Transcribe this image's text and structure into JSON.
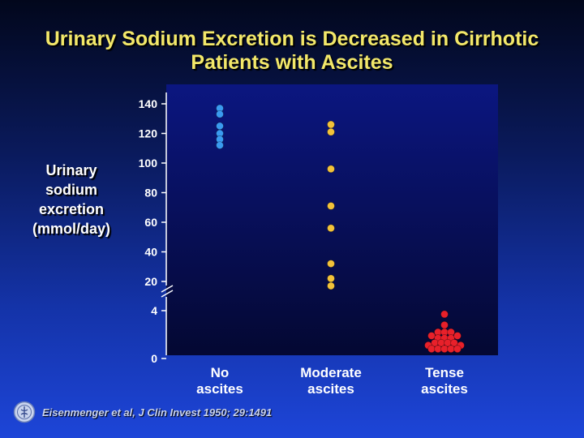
{
  "slide": {
    "title_line1": "Urinary Sodium Excretion is Decreased in Cirrhotic",
    "title_line2": "Patients with Ascites",
    "ylabel_line1": "Urinary",
    "ylabel_line2": "sodium",
    "ylabel_line3": "excretion",
    "ylabel_line4": "(mmol/day)",
    "citation": "Eisenmenger et al, J Clin Invest 1950; 29:1491"
  },
  "colors": {
    "plot_background": "#0b1680",
    "no_ascites": "#3a9af0",
    "moderate_ascites": "#f2c23a",
    "tense_ascites": "#e8202a"
  },
  "chart_data": {
    "type": "scatter",
    "title": "Urinary Sodium Excretion is Decreased in Cirrhotic Patients with Ascites",
    "ylabel": "Urinary sodium excretion (mmol/day)",
    "xlabel": "",
    "y_axis_break": "between 4 and 20",
    "yticks": [
      0,
      4,
      20,
      40,
      60,
      80,
      100,
      120,
      140
    ],
    "categories": [
      "No\nascites",
      "Moderate\nascites",
      "Tense\nascites"
    ],
    "series": [
      {
        "category": 0,
        "color": "#3a9af0",
        "points": [
          {
            "x": 0,
            "y": 137
          },
          {
            "x": 0,
            "y": 133
          },
          {
            "x": 0,
            "y": 125
          },
          {
            "x": 0,
            "y": 120
          },
          {
            "x": 0,
            "y": 116
          },
          {
            "x": 0,
            "y": 112
          }
        ]
      },
      {
        "category": 1,
        "color": "#f2c23a",
        "points": [
          {
            "x": 0,
            "y": 126
          },
          {
            "x": 0,
            "y": 121
          },
          {
            "x": 0,
            "y": 96
          },
          {
            "x": 0,
            "y": 71
          },
          {
            "x": 0,
            "y": 56
          },
          {
            "x": 0,
            "y": 32
          },
          {
            "x": 0,
            "y": 22
          },
          {
            "x": 0,
            "y": 17
          }
        ]
      },
      {
        "category": 2,
        "color": "#e8202a",
        "points": [
          {
            "x": 0,
            "y": 3.7
          },
          {
            "x": 0,
            "y": 2.8
          },
          {
            "x": -0.1,
            "y": 2.2
          },
          {
            "x": 0,
            "y": 2.2
          },
          {
            "x": 0.1,
            "y": 2.2
          },
          {
            "x": -0.2,
            "y": 1.9
          },
          {
            "x": -0.1,
            "y": 1.7
          },
          {
            "x": 0,
            "y": 1.7
          },
          {
            "x": 0.1,
            "y": 1.7
          },
          {
            "x": 0.2,
            "y": 1.9
          },
          {
            "x": -0.15,
            "y": 1.3
          },
          {
            "x": -0.05,
            "y": 1.3
          },
          {
            "x": 0.05,
            "y": 1.3
          },
          {
            "x": 0.15,
            "y": 1.3
          },
          {
            "x": -0.25,
            "y": 1.1
          },
          {
            "x": 0.25,
            "y": 1.1
          },
          {
            "x": -0.2,
            "y": 0.8
          },
          {
            "x": -0.1,
            "y": 0.8
          },
          {
            "x": 0,
            "y": 0.8
          },
          {
            "x": 0.1,
            "y": 0.8
          },
          {
            "x": 0.2,
            "y": 0.8
          }
        ]
      }
    ]
  }
}
